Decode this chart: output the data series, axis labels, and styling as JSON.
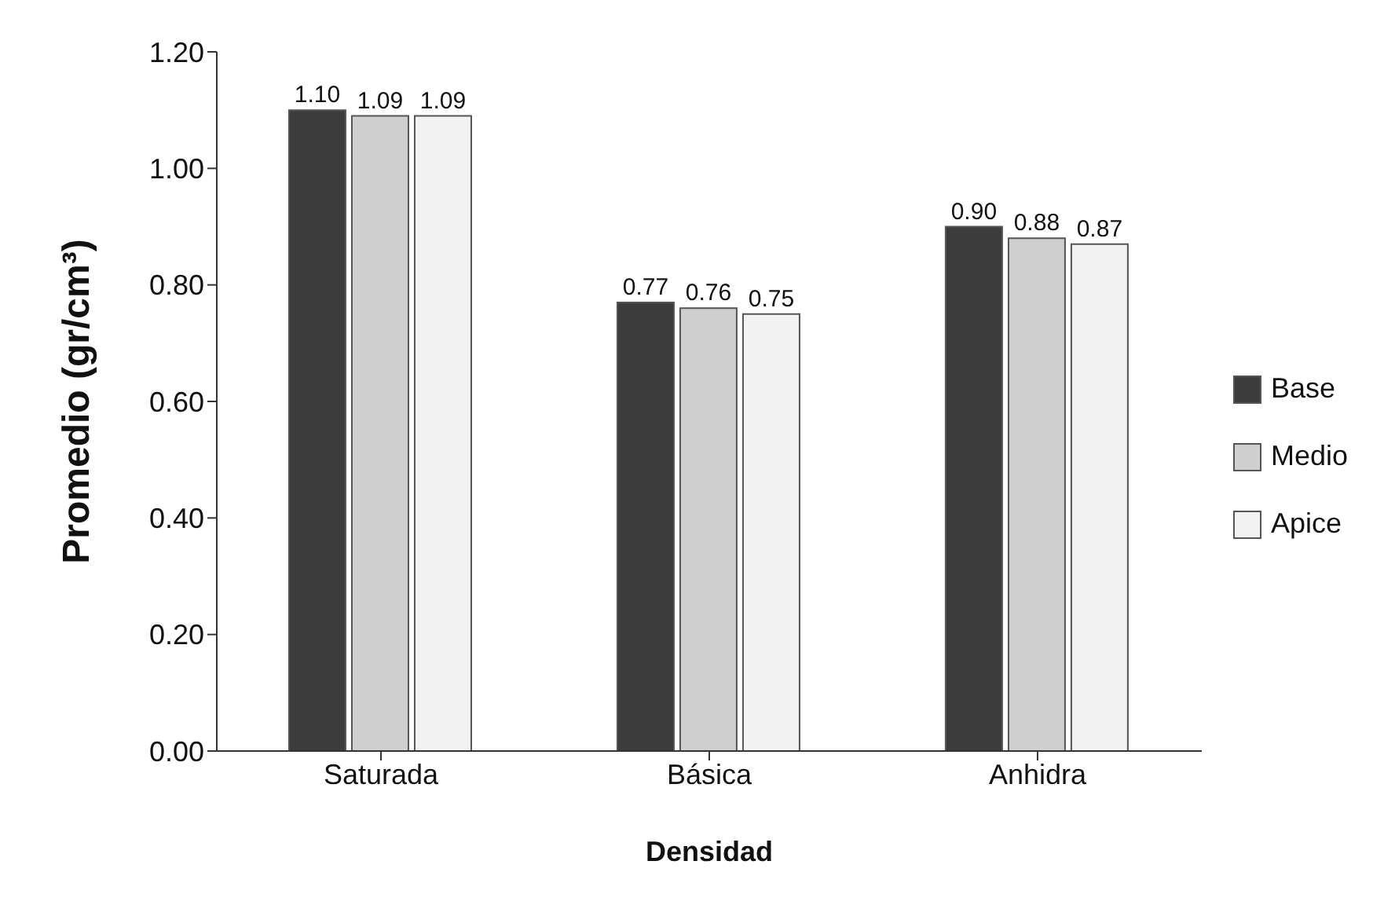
{
  "chart_data": {
    "type": "bar",
    "xlabel": "Densidad",
    "ylabel": "Promedio (gr/cm³)",
    "categories": [
      "Saturada",
      "Básica",
      "Anhidra"
    ],
    "series": [
      {
        "name": "Base",
        "color": "#3c3c3c",
        "values": [
          1.1,
          0.77,
          0.9
        ],
        "value_labels": [
          "1.10",
          "0.77",
          "0.90"
        ]
      },
      {
        "name": "Medio",
        "color": "#cfcfcf",
        "values": [
          1.09,
          0.76,
          0.88
        ],
        "value_labels": [
          "1.09",
          "0.76",
          "0.88"
        ]
      },
      {
        "name": "Apice",
        "color": "#f2f2f2",
        "values": [
          1.09,
          0.75,
          0.87
        ],
        "value_labels": [
          "1.09",
          "0.75",
          "0.87"
        ]
      }
    ],
    "ylim": [
      0,
      1.2
    ],
    "yticks": [
      {
        "value": 0,
        "label": "0.00"
      },
      {
        "value": 0.2,
        "label": "0.20"
      },
      {
        "value": 0.4,
        "label": "0.40"
      },
      {
        "value": 0.6,
        "label": "0.60"
      },
      {
        "value": 0.8,
        "label": "0.80"
      },
      {
        "value": 1.0,
        "label": "1.00"
      },
      {
        "value": 1.2,
        "label": "1.20"
      }
    ],
    "grid": false,
    "legend": "right"
  }
}
